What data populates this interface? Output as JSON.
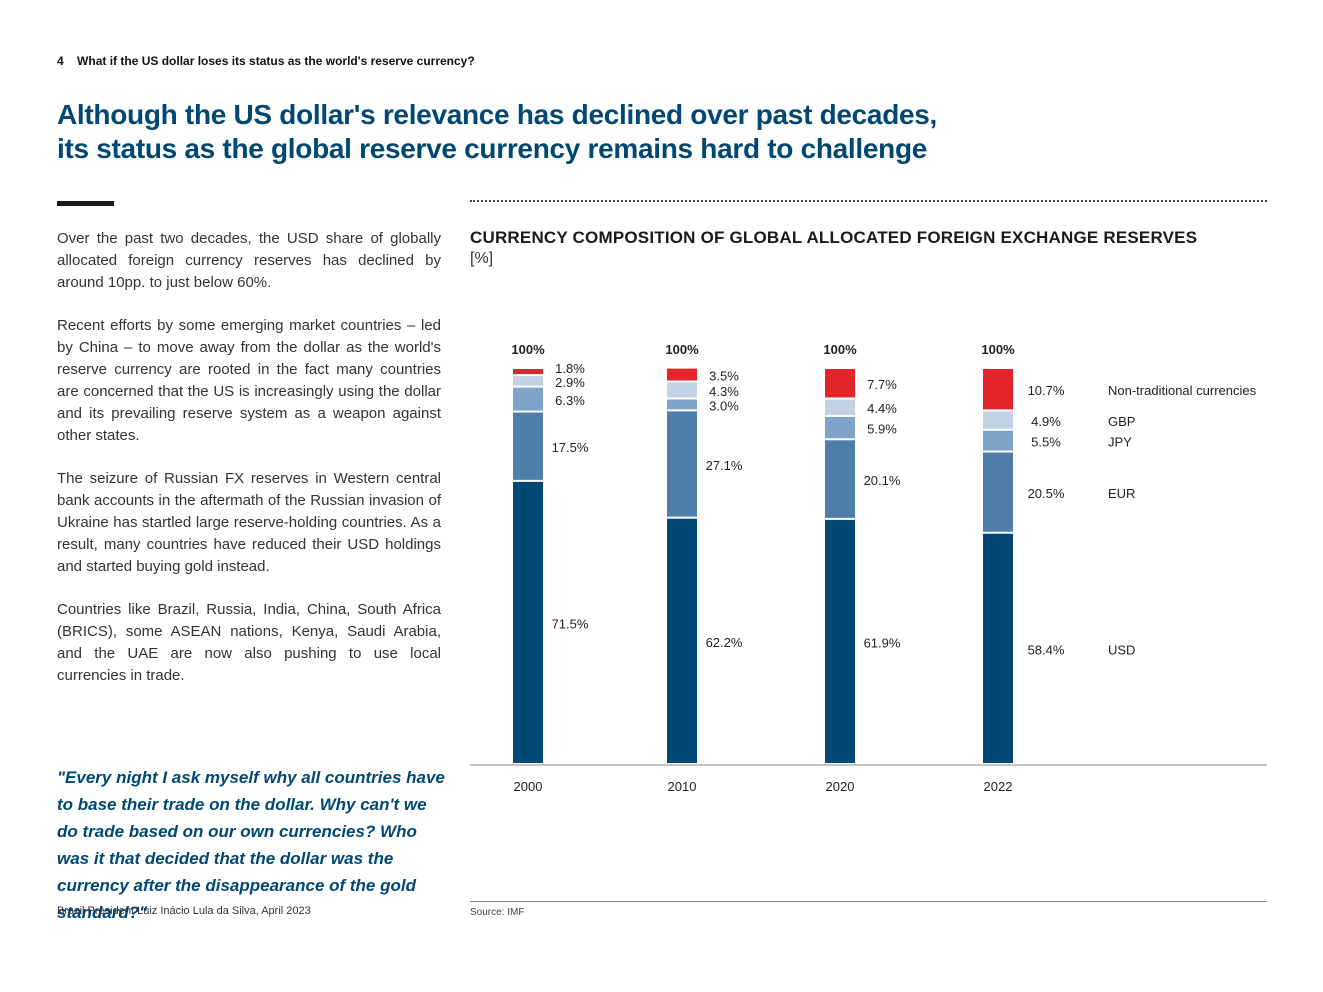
{
  "header": {
    "page_number": "4",
    "section_title": "What if the US dollar loses its status as the world's reserve currency?"
  },
  "headline": {
    "line1": "Although the US dollar's relevance has declined over past decades,",
    "line2": "its status as the global reserve currency remains hard to challenge"
  },
  "body": {
    "paragraphs": [
      "Over the past two decades, the USD share of globally allocated foreign currency reserves has declined by around 10pp. to just below 60%.",
      "Recent efforts by some emerging market countries – led by China – to move away from the dollar as the world's reserve currency are rooted in the fact many countries are concerned that the US is increasingly using the dollar and its prevailing reserve system as a weapon against other states.",
      "The seizure of Russian FX reserves in Western central bank accounts in the aftermath of the Russian invasion of Ukraine has startled large reserve-holding countries. As a result, many countries have reduced their USD holdings and started buying gold instead.",
      "Countries like Brazil, Russia, India, China, South Africa (BRICS), some ASEAN nations, Kenya, Saudi Arabia, and the UAE are now also pushing to use local currencies in trade."
    ]
  },
  "quote": {
    "text": "\"Every night I ask myself why all countries have to base their trade on the dollar. Why can't we do trade based on our own currencies? Who was it that decided that the dollar was the currency after the disappearance of the gold standard?\"",
    "attribution": "Brazil President Luiz Inácio Lula da Silva, April 2023"
  },
  "chart_title": "CURRENCY COMPOSITION OF GLOBAL ALLOCATED FOREIGN EXCHANGE RESERVES",
  "chart_unit": "[%]",
  "source": "Source: IMF",
  "colors": {
    "USD": "#004874",
    "EUR": "#4e7fab",
    "JPY": "#7ea4c9",
    "GBP": "#c1d2e5",
    "Non-traditional currencies": "#e3242b"
  },
  "chart_data": {
    "type": "bar",
    "stacked": true,
    "categories": [
      "2000",
      "2010",
      "2020",
      "2022"
    ],
    "totals": [
      "100%",
      "100%",
      "100%",
      "100%"
    ],
    "series": [
      {
        "name": "USD",
        "values": [
          71.5,
          62.2,
          61.9,
          58.4
        ],
        "labels": [
          "71.5%",
          "62.2%",
          "61.9%",
          "58.4%"
        ]
      },
      {
        "name": "EUR",
        "values": [
          17.5,
          27.1,
          20.1,
          20.5
        ],
        "labels": [
          "17.5%",
          "27.1%",
          "20.1%",
          "20.5%"
        ]
      },
      {
        "name": "JPY",
        "values": [
          6.3,
          3.0,
          5.9,
          5.5
        ],
        "labels": [
          "6.3%",
          "3.0%",
          "5.9%",
          "5.5%"
        ]
      },
      {
        "name": "GBP",
        "values": [
          2.9,
          4.3,
          4.4,
          4.9
        ],
        "labels": [
          "2.9%",
          "4.3%",
          "4.4%",
          "4.9%"
        ]
      },
      {
        "name": "Non-traditional currencies",
        "values": [
          1.8,
          3.5,
          7.7,
          10.7
        ],
        "labels": [
          "1.8%",
          "3.5%",
          "7.7%",
          "10.7%"
        ]
      }
    ],
    "ylim": [
      0,
      100
    ],
    "legend_position": "right"
  }
}
